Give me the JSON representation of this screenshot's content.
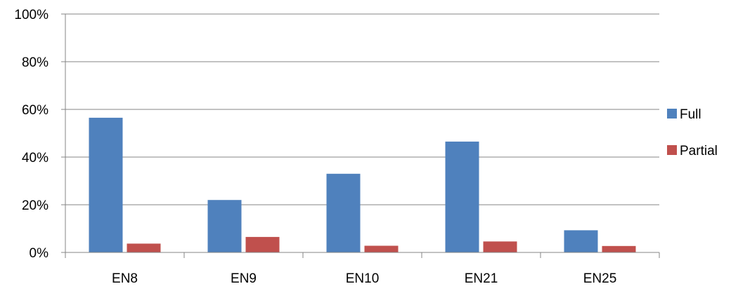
{
  "chart_data": {
    "type": "bar",
    "categories": [
      "EN8",
      "EN9",
      "EN10",
      "EN21",
      "EN25"
    ],
    "series": [
      {
        "name": "Full",
        "values": [
          0.565,
          0.22,
          0.33,
          0.465,
          0.093
        ],
        "color": "#4F81BD"
      },
      {
        "name": "Partial",
        "values": [
          0.037,
          0.065,
          0.028,
          0.046,
          0.027
        ],
        "color": "#C0504D"
      }
    ],
    "y_ticks": [
      {
        "value": 0,
        "label": "0%"
      },
      {
        "value": 0.2,
        "label": "20%"
      },
      {
        "value": 0.4,
        "label": "40%"
      },
      {
        "value": 0.6,
        "label": "60%"
      },
      {
        "value": 0.8,
        "label": "80%"
      },
      {
        "value": 1.0,
        "label": "100%"
      }
    ],
    "ylim": [
      0,
      1
    ],
    "grid": true,
    "legend_position": "right"
  }
}
